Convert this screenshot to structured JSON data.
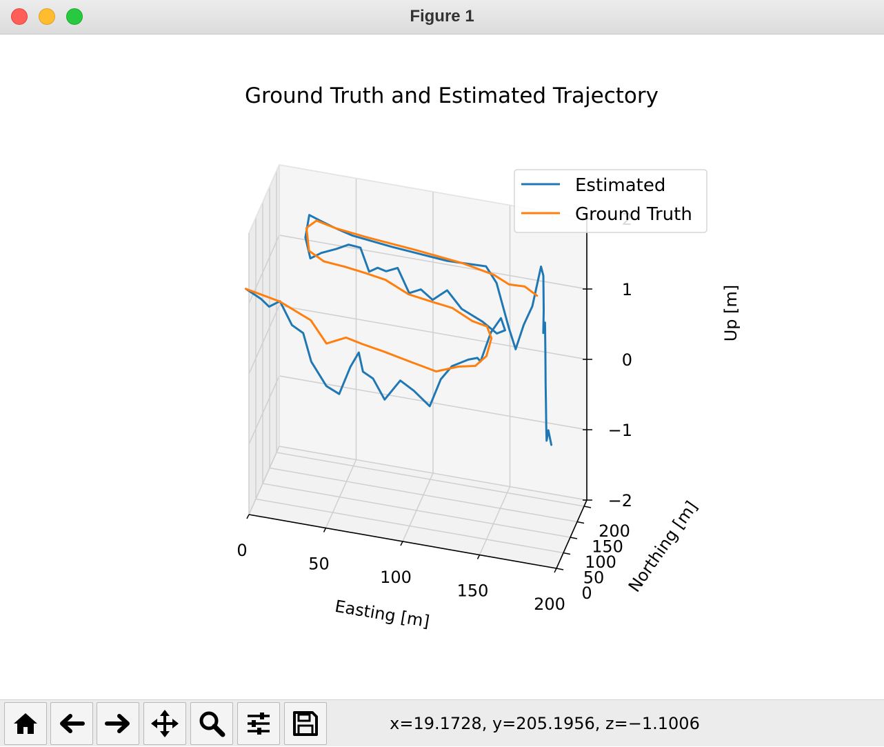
{
  "window": {
    "title": "Figure 1"
  },
  "toolbar": {
    "buttons": [
      {
        "name": "home-button",
        "icon": "home-icon"
      },
      {
        "name": "back-button",
        "icon": "arrow-left-icon"
      },
      {
        "name": "forward-button",
        "icon": "arrow-right-icon"
      },
      {
        "name": "pan-button",
        "icon": "move-icon"
      },
      {
        "name": "zoom-button",
        "icon": "magnifier-icon"
      },
      {
        "name": "configure-subplots-button",
        "icon": "sliders-icon"
      },
      {
        "name": "save-button",
        "icon": "floppy-disk-icon"
      }
    ],
    "coords": "x=19.1728, y=205.1956, z=−1.1006"
  },
  "chart_data": {
    "type": "line3d",
    "title": "Ground Truth and Estimated Trajectory",
    "xlabel": "Easting [m]",
    "ylabel": "Northing [m]",
    "zlabel": "Up [m]",
    "xlim": [
      0,
      200
    ],
    "ylim": [
      0,
      220
    ],
    "zlim": [
      -2,
      2
    ],
    "x_ticks": [
      "0",
      "50",
      "100",
      "150",
      "200"
    ],
    "y_ticks": [
      "0",
      "50",
      "100",
      "150",
      "200"
    ],
    "z_ticks": [
      "−2",
      "−1",
      "0",
      "1",
      "2"
    ],
    "grid": true,
    "legend": {
      "position": "upper-right",
      "entries": [
        "Estimated",
        "Ground Truth"
      ]
    },
    "colors": {
      "Estimated": "#1f77b4",
      "Ground Truth": "#ff7f0e"
    },
    "series": [
      {
        "name": "Estimated",
        "points": [
          [
            -2,
            0,
            1.2
          ],
          [
            8,
            -1,
            1.1
          ],
          [
            13,
            1,
            1.0
          ],
          [
            20,
            2,
            1.1
          ],
          [
            28,
            0,
            0.8
          ],
          [
            35,
            3,
            0.7
          ],
          [
            40,
            6,
            0.3
          ],
          [
            50,
            4,
            0.0
          ],
          [
            58,
            8,
            -0.1
          ],
          [
            65,
            11,
            0.3
          ],
          [
            70,
            16,
            0.5
          ],
          [
            72,
            24,
            0.2
          ],
          [
            78,
            30,
            0.1
          ],
          [
            85,
            36,
            -0.2
          ],
          [
            95,
            38,
            0.1
          ],
          [
            104,
            36,
            0.0
          ],
          [
            114,
            40,
            -0.2
          ],
          [
            121,
            42,
            0.2
          ],
          [
            128,
            45,
            0.4
          ],
          [
            138,
            52,
            0.5
          ],
          [
            143,
            62,
            0.5
          ],
          [
            144,
            74,
            0.4
          ],
          [
            150,
            82,
            0.8
          ],
          [
            156,
            88,
            1.0
          ],
          [
            158,
            96,
            0.8
          ],
          [
            152,
            103,
            0.7
          ],
          [
            142,
            110,
            0.8
          ],
          [
            128,
            116,
            0.9
          ],
          [
            118,
            122,
            1.1
          ],
          [
            108,
            128,
            0.9
          ],
          [
            100,
            132,
            1.0
          ],
          [
            92,
            136,
            0.9
          ],
          [
            84,
            142,
            1.2
          ],
          [
            76,
            147,
            1.1
          ],
          [
            70,
            153,
            1.1
          ],
          [
            64,
            158,
            1.0
          ],
          [
            58,
            162,
            1.3
          ],
          [
            50,
            165,
            1.3
          ],
          [
            42,
            167,
            1.2
          ],
          [
            32,
            168,
            1.1
          ],
          [
            25,
            167,
            1.0
          ],
          [
            22,
            164,
            1.3
          ],
          [
            24,
            170,
            1.6
          ],
          [
            30,
            180,
            1.5
          ],
          [
            38,
            188,
            1.4
          ],
          [
            50,
            194,
            1.3
          ],
          [
            75,
            202,
            1.2
          ],
          [
            110,
            210,
            1.1
          ],
          [
            135,
            214,
            1.1
          ],
          [
            142,
            212,
            0.9
          ],
          [
            148,
            190,
            0.7
          ],
          [
            154,
            168,
            0.5
          ],
          [
            160,
            150,
            0.3
          ],
          [
            164,
            164,
            0.6
          ],
          [
            168,
            182,
            0.8
          ],
          [
            172,
            200,
            1.3
          ],
          [
            174,
            195,
            1.2
          ],
          [
            176,
            175,
            0.8
          ],
          [
            178,
            150,
            0.6
          ],
          [
            180,
            140,
            0.8
          ],
          [
            182,
            120,
            0.5
          ],
          [
            184,
            100,
            0.1
          ],
          [
            186,
            80,
            -0.1
          ],
          [
            188,
            60,
            -0.3
          ],
          [
            190,
            40,
            -0.4
          ],
          [
            192,
            30,
            -0.2
          ],
          [
            194,
            30,
            -0.4
          ]
        ]
      },
      {
        "name": "Ground Truth",
        "points": [
          [
            -2,
            0,
            1.2
          ],
          [
            20,
            1,
            1.1
          ],
          [
            40,
            3,
            0.9
          ],
          [
            50,
            5,
            0.6
          ],
          [
            62,
            12,
            0.7
          ],
          [
            72,
            22,
            0.6
          ],
          [
            85,
            32,
            0.5
          ],
          [
            100,
            38,
            0.4
          ],
          [
            118,
            42,
            0.3
          ],
          [
            132,
            47,
            0.4
          ],
          [
            142,
            58,
            0.4
          ],
          [
            148,
            72,
            0.5
          ],
          [
            150,
            86,
            0.7
          ],
          [
            146,
            98,
            0.8
          ],
          [
            136,
            106,
            0.8
          ],
          [
            122,
            114,
            0.9
          ],
          [
            108,
            122,
            0.9
          ],
          [
            92,
            132,
            0.9
          ],
          [
            76,
            142,
            1.0
          ],
          [
            62,
            152,
            1.0
          ],
          [
            48,
            160,
            1.0
          ],
          [
            34,
            165,
            1.0
          ],
          [
            24,
            168,
            1.1
          ],
          [
            22,
            172,
            1.4
          ],
          [
            28,
            178,
            1.5
          ],
          [
            40,
            186,
            1.4
          ],
          [
            60,
            196,
            1.3
          ],
          [
            90,
            205,
            1.2
          ],
          [
            120,
            211,
            1.1
          ],
          [
            140,
            214,
            1.0
          ],
          [
            150,
            214,
            0.9
          ],
          [
            160,
            216,
            0.9
          ],
          [
            168,
            216,
            0.8
          ]
        ]
      }
    ]
  }
}
